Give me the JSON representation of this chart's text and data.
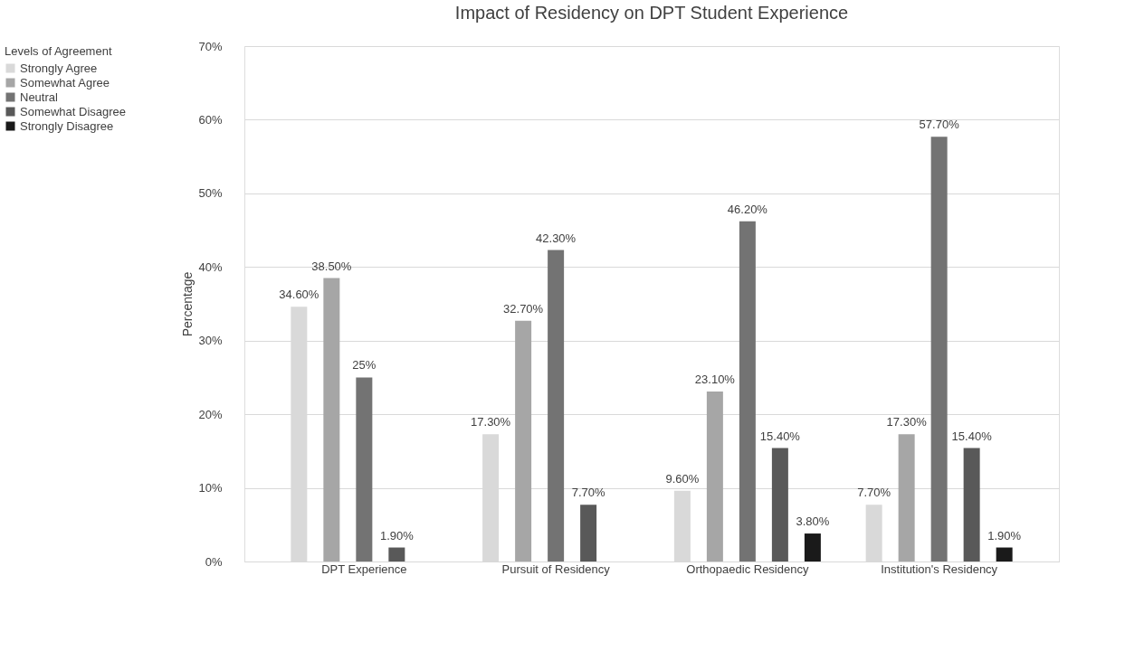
{
  "chart_data": {
    "type": "bar",
    "title": "Impact of Residency on DPT  Student Experience",
    "ylabel": "Percentage",
    "legend_title": "Levels of Agreement",
    "categories": [
      "DPT Experience",
      "Pursuit of Residency",
      "Orthopaedic Residency",
      "Institution's Residency"
    ],
    "series": [
      {
        "name": "Strongly Agree",
        "color": "#d9d9d9",
        "values": [
          34.6,
          17.3,
          9.6,
          7.7
        ],
        "value_labels": [
          "34.60%",
          "17.30%",
          "9.60%",
          "7.70%"
        ]
      },
      {
        "name": "Somewhat Agree",
        "color": "#a6a6a6",
        "values": [
          38.5,
          32.7,
          23.1,
          17.3
        ],
        "value_labels": [
          "38.50%",
          "32.70%",
          "23.10%",
          "17.30%"
        ]
      },
      {
        "name": "Neutral",
        "color": "#737373",
        "values": [
          25,
          42.3,
          46.2,
          57.7
        ],
        "value_labels": [
          "25%",
          "42.30%",
          "46.20%",
          "57.70%"
        ]
      },
      {
        "name": "Somewhat Disagree",
        "color": "#595959",
        "values": [
          1.9,
          7.7,
          15.4,
          15.4
        ],
        "value_labels": [
          "1.90%",
          "7.70%",
          "15.40%",
          "15.40%"
        ]
      },
      {
        "name": "Strongly Disagree",
        "color": "#1a1a1a",
        "values": [
          null,
          null,
          3.8,
          1.9
        ],
        "value_labels": [
          null,
          null,
          "3.80%",
          "1.90%"
        ]
      }
    ],
    "ylim": [
      0,
      70
    ],
    "yticks": [
      {
        "value": 0,
        "label": "0%"
      },
      {
        "value": 10,
        "label": "10%"
      },
      {
        "value": 20,
        "label": "20%"
      },
      {
        "value": 30,
        "label": "30%"
      },
      {
        "value": 40,
        "label": "40%"
      },
      {
        "value": 50,
        "label": "50%"
      },
      {
        "value": 60,
        "label": "60%"
      },
      {
        "value": 70,
        "label": "70%"
      }
    ],
    "grid": "y",
    "legend": "left"
  }
}
